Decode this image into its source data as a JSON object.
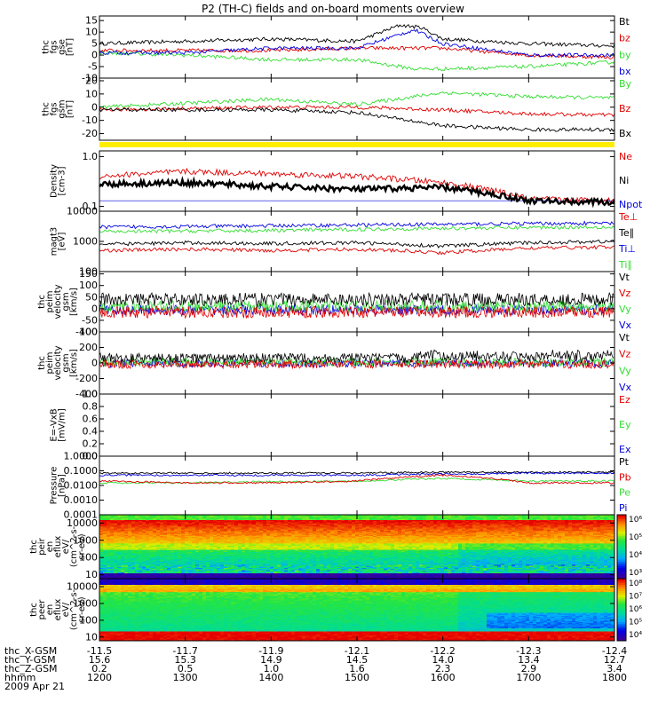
{
  "title": "P2 (TH-C) fields and on-board moments overview",
  "colors": {
    "black": "#000000",
    "red": "#e00000",
    "green": "#33dd33",
    "blue": "#0000dd",
    "yellow": "#ffee00"
  },
  "panels": [
    {
      "id": "fgs-gse",
      "ylabel_lines": [
        "thc",
        "fgs",
        "gse",
        "[nT]"
      ],
      "ytick_labels": [
        "15",
        "10",
        "5",
        "0",
        "-5",
        "-10"
      ],
      "ytick_values": [
        15,
        10,
        5,
        0,
        -5,
        -10
      ],
      "ylim": [
        -10,
        17
      ],
      "scale": "linear",
      "legend": [
        {
          "label": "Bt",
          "color": "#000000"
        },
        {
          "label": "bz",
          "color": "#e00000"
        },
        {
          "label": "by",
          "color": "#33dd33"
        },
        {
          "label": "bx",
          "color": "#0000dd"
        }
      ]
    },
    {
      "id": "fgs-gsm",
      "ylabel_lines": [
        "thc",
        "fgs",
        "gsm",
        "[nT]"
      ],
      "ytick_labels": [
        "20",
        "10",
        "0",
        "-10",
        "-20"
      ],
      "ytick_values": [
        20,
        10,
        0,
        -10,
        -20
      ],
      "ylim": [
        -25,
        22
      ],
      "scale": "linear",
      "legend": [
        {
          "label": "By",
          "color": "#33dd33"
        },
        {
          "label": "Bz",
          "color": "#e00000"
        },
        {
          "label": "Bx",
          "color": "#000000"
        }
      ]
    },
    {
      "id": "density",
      "ylabel_lines": [
        "Density",
        "[cm-3]"
      ],
      "ytick_labels": [
        "1.0",
        "0.1"
      ],
      "ytick_values": [
        1.0,
        0.1
      ],
      "ylim": [
        0.08,
        1.3
      ],
      "scale": "log",
      "legend": [
        {
          "label": "Ne",
          "color": "#e00000"
        },
        {
          "label": "Ni",
          "color": "#000000"
        },
        {
          "label": "Npot",
          "color": "#0000dd"
        }
      ]
    },
    {
      "id": "temperature",
      "ylabel_lines": [
        "magt3",
        "[eV]"
      ],
      "ytick_labels": [
        "10000",
        "1000",
        "100"
      ],
      "ytick_values": [
        10000,
        1000,
        100
      ],
      "ylim": [
        100,
        10000
      ],
      "scale": "log",
      "legend": [
        {
          "label": "Te⊥",
          "color": "#e00000"
        },
        {
          "label": "Te∥",
          "color": "#000000"
        },
        {
          "label": "Ti⊥",
          "color": "#0000dd"
        },
        {
          "label": "Ti∥",
          "color": "#33dd33"
        }
      ]
    },
    {
      "id": "peim-velocity-1",
      "ylabel_lines": [
        "thc",
        "peim",
        "velocity",
        "gsm",
        "[km/s]"
      ],
      "ytick_labels": [
        "150",
        "100",
        "50",
        "0",
        "-50",
        "-100"
      ],
      "ytick_values": [
        150,
        100,
        50,
        0,
        -50,
        -100
      ],
      "ylim": [
        -100,
        160
      ],
      "scale": "linear",
      "legend": [
        {
          "label": "Vt",
          "color": "#000000"
        },
        {
          "label": "Vz",
          "color": "#e00000"
        },
        {
          "label": "Vy",
          "color": "#33dd33"
        },
        {
          "label": "Vx",
          "color": "#0000dd"
        }
      ]
    },
    {
      "id": "peim-velocity-2",
      "ylabel_lines": [
        "thc",
        "peim",
        "velocity",
        "gsm",
        "[km/s]"
      ],
      "ytick_labels": [
        "400",
        "200",
        "0",
        "-200",
        "-400"
      ],
      "ytick_values": [
        400,
        200,
        0,
        -200,
        -400
      ],
      "ylim": [
        -400,
        400
      ],
      "scale": "linear",
      "legend": [
        {
          "label": "Vt",
          "color": "#000000"
        },
        {
          "label": "Vz",
          "color": "#e00000"
        },
        {
          "label": "Vy",
          "color": "#33dd33"
        },
        {
          "label": "Vx",
          "color": "#0000dd"
        }
      ]
    },
    {
      "id": "efield",
      "ylabel_lines": [
        "E=-VxB",
        "[mV/m]"
      ],
      "ytick_labels": [
        "1.0",
        "0.8",
        "0.6",
        "0.4",
        "0.2",
        "0.0"
      ],
      "ytick_values": [
        1.0,
        0.8,
        0.6,
        0.4,
        0.2,
        0.0
      ],
      "ylim": [
        0,
        1
      ],
      "scale": "linear",
      "legend": [
        {
          "label": "Ez",
          "color": "#e00000"
        },
        {
          "label": "Ey",
          "color": "#33dd33"
        },
        {
          "label": "Ex",
          "color": "#0000dd"
        }
      ]
    },
    {
      "id": "pressure",
      "ylabel_lines": [
        "Pressure",
        "[nPa]"
      ],
      "ytick_labels": [
        "1.0000",
        "0.1000",
        "0.0100",
        "0.0010",
        "0.0001"
      ],
      "ytick_values": [
        1.0,
        0.1,
        0.01,
        0.001,
        0.0001
      ],
      "ylim": [
        0.0001,
        1.0
      ],
      "scale": "log",
      "legend": [
        {
          "label": "Pt",
          "color": "#000000"
        },
        {
          "label": "Pb",
          "color": "#e00000"
        },
        {
          "label": "Pe",
          "color": "#33dd33"
        },
        {
          "label": "Pi",
          "color": "#0000dd"
        }
      ]
    },
    {
      "id": "peir-spectrogram",
      "ylabel_lines": [
        "thc",
        "peir",
        "en",
        "eflux",
        "eV/",
        "(cm^2-s-",
        "sr-eV)"
      ],
      "ytick_labels": [
        "10000",
        "1000",
        "100",
        "10"
      ],
      "ytick_values": [
        10000,
        1000,
        100,
        10
      ],
      "ylim": [
        6,
        30000
      ],
      "scale": "log",
      "colorbar_labels": [
        "10⁶",
        "10⁵",
        "10⁴",
        "10³"
      ]
    },
    {
      "id": "peer-spectrogram",
      "ylabel_lines": [
        "thc",
        "peer",
        "en",
        "eflux",
        "eV/",
        "(cm^2-s-",
        "sr-eV)"
      ],
      "ytick_labels": [
        "10000",
        "1000",
        "100",
        "10"
      ],
      "ytick_values": [
        10000,
        1000,
        100,
        10
      ],
      "ylim": [
        6,
        30000
      ],
      "scale": "log",
      "colorbar_labels": [
        "10⁸",
        "10⁷",
        "10⁶",
        "10⁵",
        "10⁴"
      ]
    }
  ],
  "chart_data": {
    "type": "line",
    "title": "P2 (TH-C) fields and on-board moments overview",
    "x_axis": {
      "unit": "hhmm",
      "ticks": [
        "1200",
        "1300",
        "1400",
        "1500",
        "1600",
        "1700",
        "1800"
      ],
      "xlim": [
        "1200",
        "1800"
      ],
      "date": "2009 Apr 21"
    },
    "footer_rows": [
      {
        "label": "thc_X-GSM",
        "values": [
          "-11.5",
          "-11.7",
          "-11.9",
          "-12.1",
          "-12.2",
          "-12.3",
          "-12.4"
        ]
      },
      {
        "label": "thc_Y-GSM",
        "values": [
          "15.6",
          "15.3",
          "14.9",
          "14.5",
          "14.0",
          "13.4",
          "12.7"
        ]
      },
      {
        "label": "thc_Z-GSM",
        "values": [
          "0.2",
          "0.5",
          "1.0",
          "1.6",
          "2.3",
          "2.9",
          "3.4"
        ]
      },
      {
        "label": "hhmm",
        "values": [
          "1200",
          "1300",
          "1400",
          "1500",
          "1600",
          "1700",
          "1800"
        ]
      }
    ],
    "series": [
      {
        "panel": "fgs-gse",
        "name": "Bt",
        "x": [
          "1200",
          "1300",
          "1400",
          "1500",
          "1530",
          "1545",
          "1600",
          "1700",
          "1800"
        ],
        "values": [
          5,
          6,
          7,
          6,
          13,
          12,
          7,
          5,
          4
        ]
      },
      {
        "panel": "fgs-gse",
        "name": "bz",
        "x": [
          "1200",
          "1300",
          "1400",
          "1500",
          "1600",
          "1700",
          "1800"
        ],
        "values": [
          2,
          2,
          2,
          3,
          3,
          0,
          -1
        ]
      },
      {
        "panel": "fgs-gse",
        "name": "by",
        "x": [
          "1200",
          "1300",
          "1400",
          "1500",
          "1540",
          "1600",
          "1700",
          "1800"
        ],
        "values": [
          1,
          0,
          -2,
          -2,
          -6,
          -6,
          -5,
          -3
        ]
      },
      {
        "panel": "fgs-gse",
        "name": "bx",
        "x": [
          "1200",
          "1300",
          "1400",
          "1500",
          "1540",
          "1600",
          "1700",
          "1800"
        ],
        "values": [
          1,
          1,
          3,
          3,
          11,
          5,
          0,
          0
        ]
      },
      {
        "panel": "fgs-gsm",
        "name": "By",
        "x": [
          "1200",
          "1300",
          "1400",
          "1500",
          "1600",
          "1700",
          "1800"
        ],
        "values": [
          0,
          3,
          6,
          2,
          11,
          8,
          7
        ]
      },
      {
        "panel": "fgs-gsm",
        "name": "Bz",
        "x": [
          "1200",
          "1300",
          "1400",
          "1500",
          "1600",
          "1700",
          "1800"
        ],
        "values": [
          -2,
          -1,
          0,
          0,
          -2,
          -5,
          -6
        ]
      },
      {
        "panel": "fgs-gsm",
        "name": "Bx",
        "x": [
          "1200",
          "1300",
          "1400",
          "1500",
          "1600",
          "1700",
          "1800"
        ],
        "values": [
          -2,
          -2,
          -2,
          -4,
          -14,
          -17,
          -17
        ]
      },
      {
        "panel": "density",
        "name": "Ne",
        "x": [
          "1200",
          "1300",
          "1400",
          "1500",
          "1600",
          "1700",
          "1800"
        ],
        "values": [
          0.4,
          0.5,
          0.45,
          0.4,
          0.3,
          0.14,
          0.13
        ]
      },
      {
        "panel": "density",
        "name": "Ni",
        "x": [
          "1200",
          "1300",
          "1400",
          "1500",
          "1600",
          "1700",
          "1800"
        ],
        "values": [
          0.28,
          0.3,
          0.25,
          0.22,
          0.24,
          0.13,
          0.12
        ]
      },
      {
        "panel": "temperature",
        "name": "Ti⊥",
        "x": [
          "1200",
          "1300",
          "1400",
          "1500",
          "1600",
          "1700",
          "1800"
        ],
        "values": [
          3000,
          3100,
          3300,
          3500,
          3700,
          3900,
          4000
        ]
      },
      {
        "panel": "temperature",
        "name": "Ti∥",
        "x": [
          "1200",
          "1300",
          "1400",
          "1500",
          "1600",
          "1700",
          "1800"
        ],
        "values": [
          2100,
          2200,
          2300,
          2500,
          2700,
          2900,
          3000
        ]
      },
      {
        "panel": "temperature",
        "name": "Te∥",
        "x": [
          "1200",
          "1300",
          "1400",
          "1500",
          "1600",
          "1700",
          "1800"
        ],
        "values": [
          800,
          900,
          850,
          900,
          700,
          900,
          1000
        ]
      },
      {
        "panel": "temperature",
        "name": "Te⊥",
        "x": [
          "1200",
          "1300",
          "1400",
          "1500",
          "1600",
          "1700",
          "1800"
        ],
        "values": [
          500,
          550,
          500,
          550,
          420,
          600,
          650
        ]
      },
      {
        "panel": "pressure",
        "name": "Pt",
        "x": [
          "1200",
          "1300",
          "1400",
          "1500",
          "1600",
          "1700",
          "1800"
        ],
        "values": [
          0.07,
          0.07,
          0.07,
          0.07,
          0.08,
          0.08,
          0.08
        ]
      },
      {
        "panel": "pressure",
        "name": "Pi",
        "x": [
          "1200",
          "1300",
          "1400",
          "1500",
          "1600",
          "1700",
          "1800"
        ],
        "values": [
          0.05,
          0.05,
          0.05,
          0.05,
          0.06,
          0.07,
          0.07
        ]
      },
      {
        "panel": "pressure",
        "name": "Pe",
        "x": [
          "1200",
          "1300",
          "1400",
          "1500",
          "1600",
          "1700",
          "1800"
        ],
        "values": [
          0.015,
          0.015,
          0.018,
          0.02,
          0.03,
          0.02,
          0.02
        ]
      },
      {
        "panel": "pressure",
        "name": "Pb",
        "x": [
          "1200",
          "1300",
          "1400",
          "1500",
          "1600",
          "1700",
          "1800"
        ],
        "values": [
          0.02,
          0.015,
          0.015,
          0.02,
          0.05,
          0.015,
          0.015
        ]
      }
    ]
  }
}
